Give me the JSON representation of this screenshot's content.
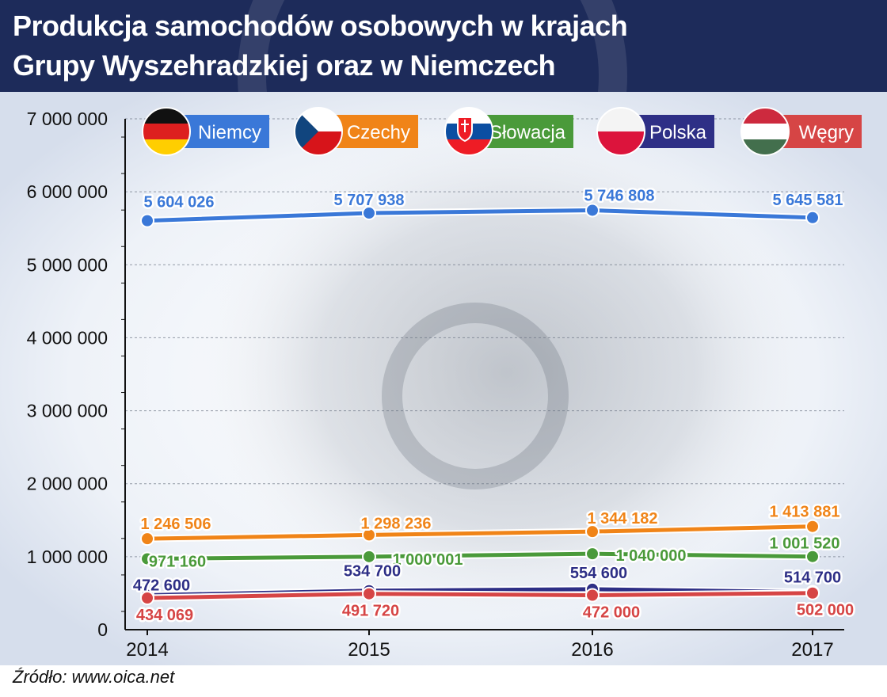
{
  "title": {
    "line1": "Produkcja samochodów osobowych w krajach",
    "line2": "Grupy Wyszehradzkiej oraz w Niemczech"
  },
  "source": "Źródło: www.oica.net",
  "chart_data": {
    "type": "line",
    "x": [
      "2014",
      "2015",
      "2016",
      "2017"
    ],
    "ylim": [
      0,
      7000000
    ],
    "y_ticks": [
      "0",
      "1 000 000",
      "2 000 000",
      "3 000 000",
      "4 000 000",
      "5 000 000",
      "6 000 000",
      "7 000 000"
    ],
    "grid": true,
    "legend_position": "top",
    "series": [
      {
        "name": "Niemcy",
        "color": "#3a78d8",
        "icon": "flag-germany",
        "values": [
          5604026,
          5707938,
          5746808,
          5645581
        ],
        "labels": [
          "5 604 026",
          "5 707 938",
          "5 746 808",
          "5 645 581"
        ]
      },
      {
        "name": "Czechy",
        "color": "#f08418",
        "icon": "flag-czechia",
        "values": [
          1246506,
          1298236,
          1344182,
          1413881
        ],
        "labels": [
          "1 246 506",
          "1 298 236",
          "1 344 182",
          "1 413 881"
        ]
      },
      {
        "name": "Słowacja",
        "color": "#4a9a3a",
        "icon": "flag-slovakia",
        "values": [
          971160,
          1000001,
          1040000,
          1001520
        ],
        "labels": [
          "971 160",
          "1 000 001",
          "1 040 000",
          "1 001 520"
        ]
      },
      {
        "name": "Polska",
        "color": "#2e2f86",
        "icon": "flag-poland",
        "values": [
          472600,
          534700,
          554600,
          514700
        ],
        "labels": [
          "472 600",
          "534 700",
          "554 600",
          "514 700"
        ]
      },
      {
        "name": "Węgry",
        "color": "#d64545",
        "icon": "flag-hungary",
        "values": [
          434069,
          491720,
          472000,
          502000
        ],
        "labels": [
          "434 069",
          "491 720",
          "472 000",
          "502 000"
        ]
      }
    ]
  }
}
